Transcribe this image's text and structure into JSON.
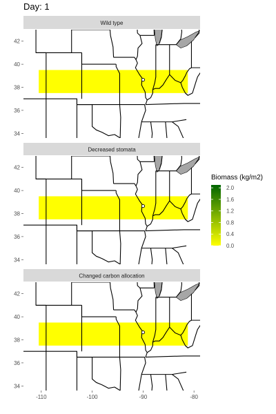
{
  "title": "Day: 1",
  "chart_data": {
    "type": "heatmap",
    "x_ticks": [
      -110,
      -100,
      -90,
      -80
    ],
    "x_tick_labels": [
      "-110",
      "-100",
      "-90",
      "-80"
    ],
    "y_ticks": [
      34,
      36,
      38,
      40,
      42
    ],
    "y_tick_labels": [
      "34",
      "36",
      "38",
      "40",
      "42"
    ],
    "xlim": [
      -113.5,
      -78.8
    ],
    "ylim": [
      33.6,
      43.0
    ],
    "panels": [
      {
        "label": "Wild type",
        "cells": [
          {
            "xmin": -110.5,
            "xmax": -81.2,
            "ymin": 37.5,
            "ymax": 39.5,
            "biomass": 0.0
          }
        ],
        "site": {
          "lon": -90.0,
          "lat": 38.65
        }
      },
      {
        "label": "Decreased stomata",
        "cells": [
          {
            "xmin": -110.5,
            "xmax": -81.2,
            "ymin": 37.5,
            "ymax": 39.5,
            "biomass": 0.0
          }
        ],
        "site": {
          "lon": -90.0,
          "lat": 38.65
        }
      },
      {
        "label": "Changed carbon allocation",
        "cells": [
          {
            "xmin": -110.5,
            "xmax": -81.2,
            "ymin": 37.5,
            "ymax": 39.5,
            "biomass": 0.0
          }
        ],
        "site": {
          "lon": -90.0,
          "lat": 38.65
        }
      }
    ],
    "legend": {
      "title": "Biomass (kg/m2)",
      "breaks": [
        0.0,
        0.4,
        0.8,
        1.2,
        1.6,
        2.0
      ],
      "break_labels": [
        "0.0",
        "0.4",
        "0.8",
        "1.2",
        "1.6",
        "2.0"
      ],
      "limits": [
        0.0,
        2.1
      ],
      "low_color": "#ffff00",
      "high_color": "#006400"
    },
    "colors": {
      "strip": "#d9d9d9",
      "water": "#a6a6a6",
      "borders": "#000000"
    }
  }
}
